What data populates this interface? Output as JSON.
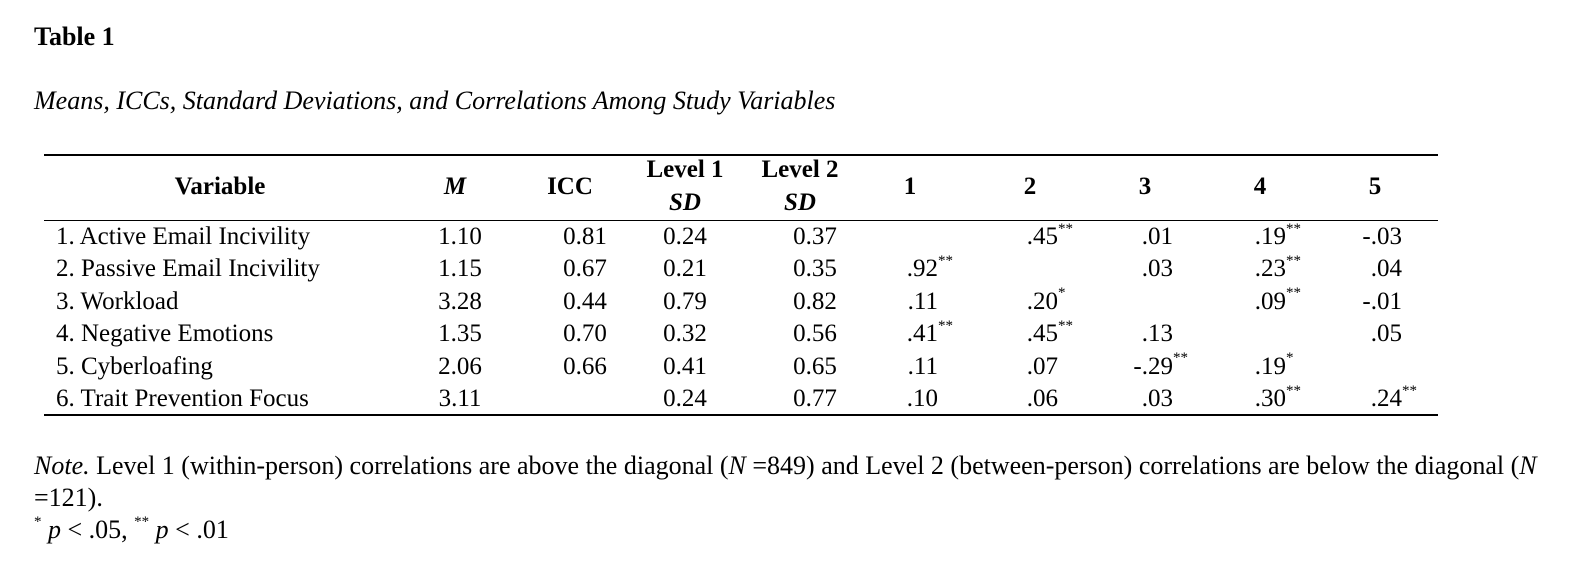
{
  "table": {
    "label": "Table 1",
    "title": "Means, ICCs, Standard Deviations, and Correlations Among Study Variables",
    "headers": {
      "variable": "Variable",
      "m": "M",
      "icc": "ICC",
      "level1_line1": "Level 1",
      "level1_line2": "SD",
      "level2_line1": "Level 2",
      "level2_line2": "SD",
      "c1": "1",
      "c2": "2",
      "c3": "3",
      "c4": "4",
      "c5": "5"
    },
    "rows": [
      {
        "variable": "1. Active Email Incivility",
        "m": "1.10",
        "icc": "0.81",
        "sd1": "0.24",
        "sd2": "0.37",
        "c1": "",
        "c1s": "",
        "c2": ".45",
        "c2s": "**",
        "c3": ".01",
        "c3s": "",
        "c4": ".19",
        "c4s": "**",
        "c5": "-.03",
        "c5s": ""
      },
      {
        "variable": "2. Passive Email Incivility",
        "m": "1.15",
        "icc": "0.67",
        "sd1": "0.21",
        "sd2": "0.35",
        "c1": ".92",
        "c1s": "**",
        "c2": "",
        "c2s": "",
        "c3": ".03",
        "c3s": "",
        "c4": ".23",
        "c4s": "**",
        "c5": ".04",
        "c5s": ""
      },
      {
        "variable": "3. Workload",
        "m": "3.28",
        "icc": "0.44",
        "sd1": "0.79",
        "sd2": "0.82",
        "c1": ".11",
        "c1s": "",
        "c2": ".20",
        "c2s": "*",
        "c3": "",
        "c3s": "",
        "c4": ".09",
        "c4s": "**",
        "c5": "-.01",
        "c5s": ""
      },
      {
        "variable": "4. Negative Emotions",
        "m": "1.35",
        "icc": "0.70",
        "sd1": "0.32",
        "sd2": "0.56",
        "c1": ".41",
        "c1s": "**",
        "c2": ".45",
        "c2s": "**",
        "c3": ".13",
        "c3s": "",
        "c4": "",
        "c4s": "",
        "c5": ".05",
        "c5s": ""
      },
      {
        "variable": "5. Cyberloafing",
        "m": "2.06",
        "icc": "0.66",
        "sd1": "0.41",
        "sd2": "0.65",
        "c1": ".11",
        "c1s": "",
        "c2": ".07",
        "c2s": "",
        "c3": "-.29",
        "c3s": "**",
        "c4": ".19",
        "c4s": "*",
        "c5": "",
        "c5s": ""
      },
      {
        "variable": "6. Trait Prevention Focus",
        "m": "3.11",
        "icc": "",
        "sd1": "0.24",
        "sd2": "0.77",
        "c1": ".10",
        "c1s": "",
        "c2": ".06",
        "c2s": "",
        "c3": ".03",
        "c3s": "",
        "c4": ".30",
        "c4s": "**",
        "c5": ".24",
        "c5s": "**"
      }
    ]
  },
  "note": {
    "lead": "Note.",
    "text_a": " Level 1 (within-person) correlations are above the diagonal (",
    "n1_label": "N",
    "text_b": " =849) and Level 2 (between-person) correlations are below the diagonal (",
    "n2_label": "N",
    "text_c": " =121).",
    "sig_star1": "*",
    "sig_p1": " p",
    "sig_text1": " < .05, ",
    "sig_star2": "**",
    "sig_p2": " p",
    "sig_text2": " < .01"
  }
}
